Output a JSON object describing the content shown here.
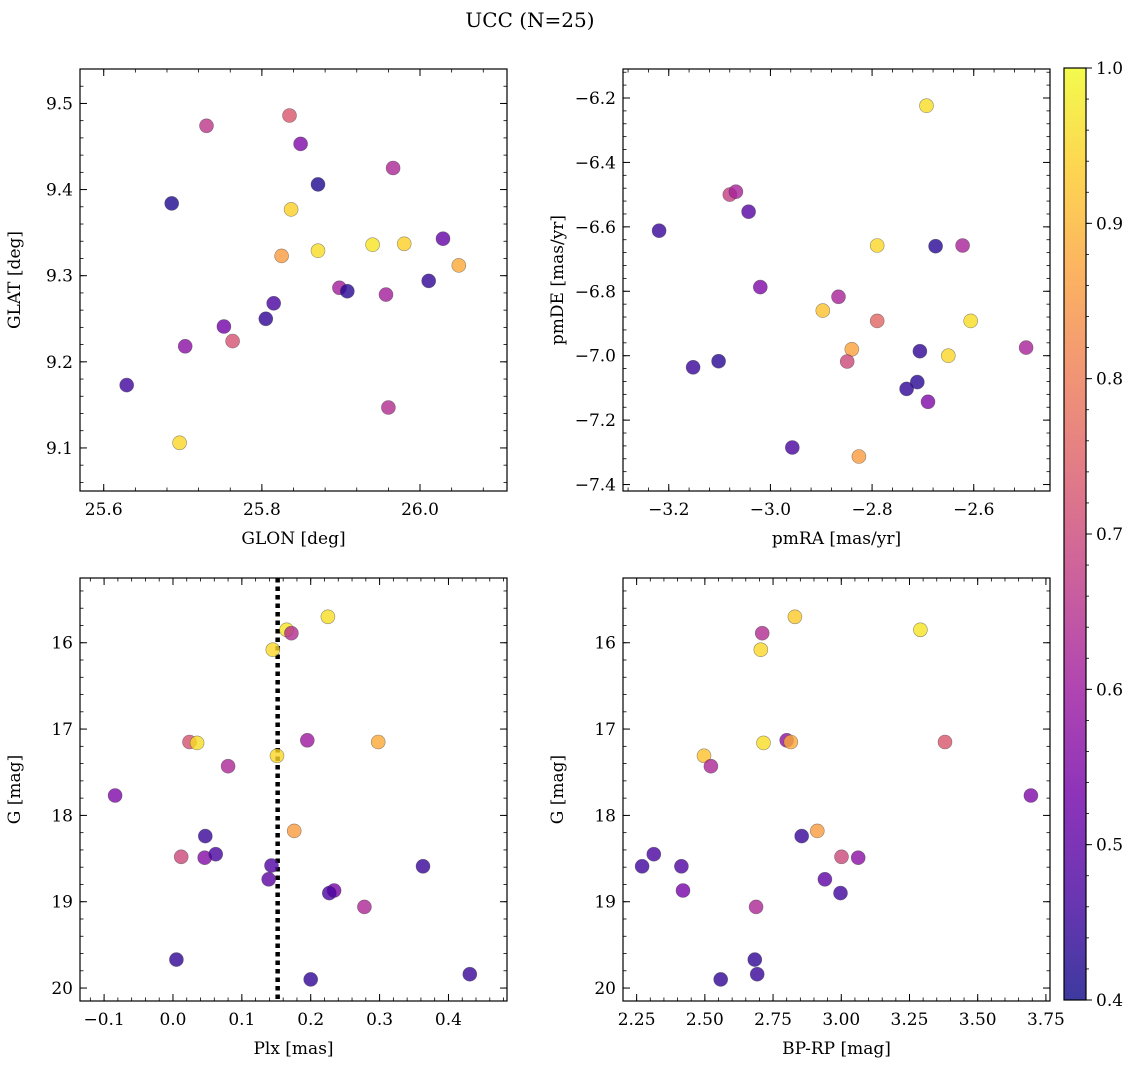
{
  "figure_title": "UCC (N=25)",
  "colorbar": {
    "range": [
      0.4,
      1.0
    ],
    "ticks": [
      0.4,
      0.5,
      0.6,
      0.7,
      0.8,
      0.9,
      1.0
    ],
    "tick_labels": [
      "0.4",
      "0.5",
      "0.6",
      "0.7",
      "0.8",
      "0.9",
      "1.0"
    ],
    "colormap": "plasma",
    "stops": [
      "#0d0887",
      "#46039f",
      "#7201a8",
      "#9c179e",
      "#bd3786",
      "#d8576b",
      "#ed7953",
      "#fb9f3a",
      "#fdca26",
      "#f0f921"
    ],
    "alpha": 0.8
  },
  "chart_data": [
    {
      "type": "scatter",
      "id": "glon-glat",
      "xlabel": "GLON [deg]",
      "ylabel": "GLAT [deg]",
      "xlim": [
        25.57,
        26.11
      ],
      "ylim": [
        9.05,
        9.54
      ],
      "xticks": [
        25.6,
        25.8,
        26.0
      ],
      "xtick_labels": [
        "25.6",
        "25.8",
        "26.0"
      ],
      "yticks": [
        9.1,
        9.2,
        9.3,
        9.4,
        9.5
      ],
      "ytick_labels": [
        "9.1",
        "9.2",
        "9.3",
        "9.4",
        "9.5"
      ],
      "yinvert": false,
      "points": [
        {
          "x": 25.73,
          "y": 9.474,
          "c": 0.66
        },
        {
          "x": 25.835,
          "y": 9.486,
          "c": 0.73
        },
        {
          "x": 25.849,
          "y": 9.453,
          "c": 0.55
        },
        {
          "x": 25.966,
          "y": 9.425,
          "c": 0.63
        },
        {
          "x": 25.871,
          "y": 9.406,
          "c": 0.42
        },
        {
          "x": 25.686,
          "y": 9.384,
          "c": 0.42
        },
        {
          "x": 25.837,
          "y": 9.377,
          "c": 0.94
        },
        {
          "x": 26.029,
          "y": 9.343,
          "c": 0.51
        },
        {
          "x": 25.94,
          "y": 9.336,
          "c": 0.97
        },
        {
          "x": 25.98,
          "y": 9.337,
          "c": 0.94
        },
        {
          "x": 25.871,
          "y": 9.329,
          "c": 0.96
        },
        {
          "x": 25.825,
          "y": 9.323,
          "c": 0.86
        },
        {
          "x": 26.049,
          "y": 9.312,
          "c": 0.88
        },
        {
          "x": 26.011,
          "y": 9.294,
          "c": 0.44
        },
        {
          "x": 25.898,
          "y": 9.286,
          "c": 0.61
        },
        {
          "x": 25.908,
          "y": 9.282,
          "c": 0.43
        },
        {
          "x": 25.957,
          "y": 9.278,
          "c": 0.61
        },
        {
          "x": 25.815,
          "y": 9.268,
          "c": 0.47
        },
        {
          "x": 25.805,
          "y": 9.25,
          "c": 0.44
        },
        {
          "x": 25.752,
          "y": 9.241,
          "c": 0.53
        },
        {
          "x": 25.763,
          "y": 9.224,
          "c": 0.72
        },
        {
          "x": 25.703,
          "y": 9.218,
          "c": 0.57
        },
        {
          "x": 25.629,
          "y": 9.173,
          "c": 0.46
        },
        {
          "x": 25.96,
          "y": 9.147,
          "c": 0.64
        },
        {
          "x": 25.696,
          "y": 9.106,
          "c": 0.95
        }
      ]
    },
    {
      "type": "scatter",
      "id": "pmra-pmde",
      "xlabel": "pmRA [mas/yr]",
      "ylabel": "pmDE [mas/yr]",
      "xlim": [
        -3.29,
        -2.45
      ],
      "ylim": [
        -7.42,
        -6.11
      ],
      "xticks": [
        -3.2,
        -3.0,
        -2.8,
        -2.6
      ],
      "xtick_labels": [
        "−3.2",
        "−3.0",
        "−2.8",
        "−2.6"
      ],
      "yticks": [
        -7.4,
        -7.2,
        -7.0,
        -6.8,
        -6.6,
        -6.4,
        -6.2
      ],
      "ytick_labels": [
        "−7.4",
        "−7.2",
        "−7.0",
        "−6.8",
        "−6.6",
        "−6.4",
        "−6.2"
      ],
      "yinvert": false,
      "points": [
        {
          "x": -2.693,
          "y": -6.224,
          "c": 0.96
        },
        {
          "x": -3.08,
          "y": -6.5,
          "c": 0.68
        },
        {
          "x": -3.068,
          "y": -6.491,
          "c": 0.62
        },
        {
          "x": -3.043,
          "y": -6.553,
          "c": 0.49
        },
        {
          "x": -3.219,
          "y": -6.612,
          "c": 0.45
        },
        {
          "x": -2.79,
          "y": -6.658,
          "c": 0.95
        },
        {
          "x": -2.675,
          "y": -6.66,
          "c": 0.43
        },
        {
          "x": -2.622,
          "y": -6.658,
          "c": 0.62
        },
        {
          "x": -3.02,
          "y": -6.787,
          "c": 0.55
        },
        {
          "x": -2.866,
          "y": -6.817,
          "c": 0.62
        },
        {
          "x": -2.897,
          "y": -6.86,
          "c": 0.92
        },
        {
          "x": -2.79,
          "y": -6.892,
          "c": 0.76
        },
        {
          "x": -2.606,
          "y": -6.892,
          "c": 0.96
        },
        {
          "x": -2.497,
          "y": -6.975,
          "c": 0.62
        },
        {
          "x": -2.84,
          "y": -6.98,
          "c": 0.87
        },
        {
          "x": -2.706,
          "y": -6.986,
          "c": 0.44
        },
        {
          "x": -2.65,
          "y": -7.0,
          "c": 0.95
        },
        {
          "x": -3.102,
          "y": -7.017,
          "c": 0.43
        },
        {
          "x": -2.849,
          "y": -7.018,
          "c": 0.7
        },
        {
          "x": -3.152,
          "y": -7.036,
          "c": 0.45
        },
        {
          "x": -2.711,
          "y": -7.082,
          "c": 0.43
        },
        {
          "x": -2.732,
          "y": -7.103,
          "c": 0.44
        },
        {
          "x": -2.69,
          "y": -7.143,
          "c": 0.55
        },
        {
          "x": -2.957,
          "y": -7.285,
          "c": 0.47
        },
        {
          "x": -2.826,
          "y": -7.313,
          "c": 0.86
        }
      ]
    },
    {
      "type": "scatter",
      "id": "plx-g",
      "xlabel": "Plx [mas]",
      "ylabel": "G [mag]",
      "xlim": [
        -0.135,
        0.485
      ],
      "ylim": [
        15.25,
        20.15
      ],
      "xticks": [
        -0.1,
        0.0,
        0.1,
        0.2,
        0.3,
        0.4
      ],
      "xtick_labels": [
        "−0.1",
        "0.0",
        "0.1",
        "0.2",
        "0.3",
        "0.4"
      ],
      "yticks": [
        16,
        17,
        18,
        19,
        20
      ],
      "ytick_labels": [
        "16",
        "17",
        "18",
        "19",
        "20"
      ],
      "yinvert": true,
      "vline": {
        "x": 0.152,
        "style": "dotted"
      },
      "points": [
        {
          "x": 0.225,
          "y": 15.7,
          "c": 0.96
        },
        {
          "x": 0.165,
          "y": 15.85,
          "c": 0.97
        },
        {
          "x": 0.172,
          "y": 15.89,
          "c": 0.64
        },
        {
          "x": 0.145,
          "y": 16.08,
          "c": 0.95
        },
        {
          "x": 0.024,
          "y": 17.15,
          "c": 0.72
        },
        {
          "x": 0.035,
          "y": 17.16,
          "c": 0.96
        },
        {
          "x": 0.298,
          "y": 17.15,
          "c": 0.88
        },
        {
          "x": 0.195,
          "y": 17.13,
          "c": 0.6
        },
        {
          "x": 0.151,
          "y": 17.31,
          "c": 0.95
        },
        {
          "x": 0.08,
          "y": 17.43,
          "c": 0.63
        },
        {
          "x": -0.084,
          "y": 17.77,
          "c": 0.55
        },
        {
          "x": 0.176,
          "y": 18.18,
          "c": 0.86
        },
        {
          "x": 0.047,
          "y": 18.24,
          "c": 0.45
        },
        {
          "x": 0.012,
          "y": 18.48,
          "c": 0.7
        },
        {
          "x": 0.046,
          "y": 18.49,
          "c": 0.56
        },
        {
          "x": 0.062,
          "y": 18.45,
          "c": 0.47
        },
        {
          "x": 0.143,
          "y": 18.58,
          "c": 0.48
        },
        {
          "x": 0.363,
          "y": 18.59,
          "c": 0.45
        },
        {
          "x": 0.139,
          "y": 18.74,
          "c": 0.5
        },
        {
          "x": 0.234,
          "y": 18.87,
          "c": 0.54
        },
        {
          "x": 0.227,
          "y": 18.9,
          "c": 0.47
        },
        {
          "x": 0.278,
          "y": 19.06,
          "c": 0.63
        },
        {
          "x": 0.005,
          "y": 19.67,
          "c": 0.44
        },
        {
          "x": 0.2,
          "y": 19.9,
          "c": 0.44
        },
        {
          "x": 0.431,
          "y": 19.84,
          "c": 0.45
        }
      ]
    },
    {
      "type": "scatter",
      "id": "bprp-g",
      "xlabel": "BP-RP [mag]",
      "ylabel": "G [mag]",
      "xlim": [
        2.2,
        3.765
      ],
      "ylim": [
        15.25,
        20.15
      ],
      "xticks": [
        2.25,
        2.5,
        2.75,
        3.0,
        3.25,
        3.5,
        3.75
      ],
      "xtick_labels": [
        "2.25",
        "2.50",
        "2.75",
        "3.00",
        "3.25",
        "3.50",
        "3.75"
      ],
      "yticks": [
        16,
        17,
        18,
        19,
        20
      ],
      "ytick_labels": [
        "16",
        "17",
        "18",
        "19",
        "20"
      ],
      "yinvert": true,
      "points": [
        {
          "x": 2.83,
          "y": 15.7,
          "c": 0.93
        },
        {
          "x": 3.29,
          "y": 15.85,
          "c": 0.97
        },
        {
          "x": 2.71,
          "y": 15.89,
          "c": 0.64
        },
        {
          "x": 2.705,
          "y": 16.08,
          "c": 0.95
        },
        {
          "x": 2.8,
          "y": 17.13,
          "c": 0.58
        },
        {
          "x": 2.815,
          "y": 17.15,
          "c": 0.88
        },
        {
          "x": 3.38,
          "y": 17.15,
          "c": 0.73
        },
        {
          "x": 2.715,
          "y": 17.16,
          "c": 0.96
        },
        {
          "x": 2.497,
          "y": 17.31,
          "c": 0.92
        },
        {
          "x": 2.522,
          "y": 17.43,
          "c": 0.63
        },
        {
          "x": 3.695,
          "y": 17.77,
          "c": 0.55
        },
        {
          "x": 2.912,
          "y": 18.18,
          "c": 0.86
        },
        {
          "x": 2.855,
          "y": 18.24,
          "c": 0.45
        },
        {
          "x": 2.313,
          "y": 18.45,
          "c": 0.47
        },
        {
          "x": 3.001,
          "y": 18.48,
          "c": 0.7
        },
        {
          "x": 3.062,
          "y": 18.49,
          "c": 0.57
        },
        {
          "x": 2.27,
          "y": 18.59,
          "c": 0.46
        },
        {
          "x": 2.414,
          "y": 18.59,
          "c": 0.48
        },
        {
          "x": 2.94,
          "y": 18.74,
          "c": 0.5
        },
        {
          "x": 2.42,
          "y": 18.87,
          "c": 0.54
        },
        {
          "x": 2.997,
          "y": 18.9,
          "c": 0.46
        },
        {
          "x": 2.688,
          "y": 19.06,
          "c": 0.63
        },
        {
          "x": 2.683,
          "y": 19.67,
          "c": 0.44
        },
        {
          "x": 2.692,
          "y": 19.84,
          "c": 0.45
        },
        {
          "x": 2.558,
          "y": 19.9,
          "c": 0.44
        }
      ]
    }
  ]
}
